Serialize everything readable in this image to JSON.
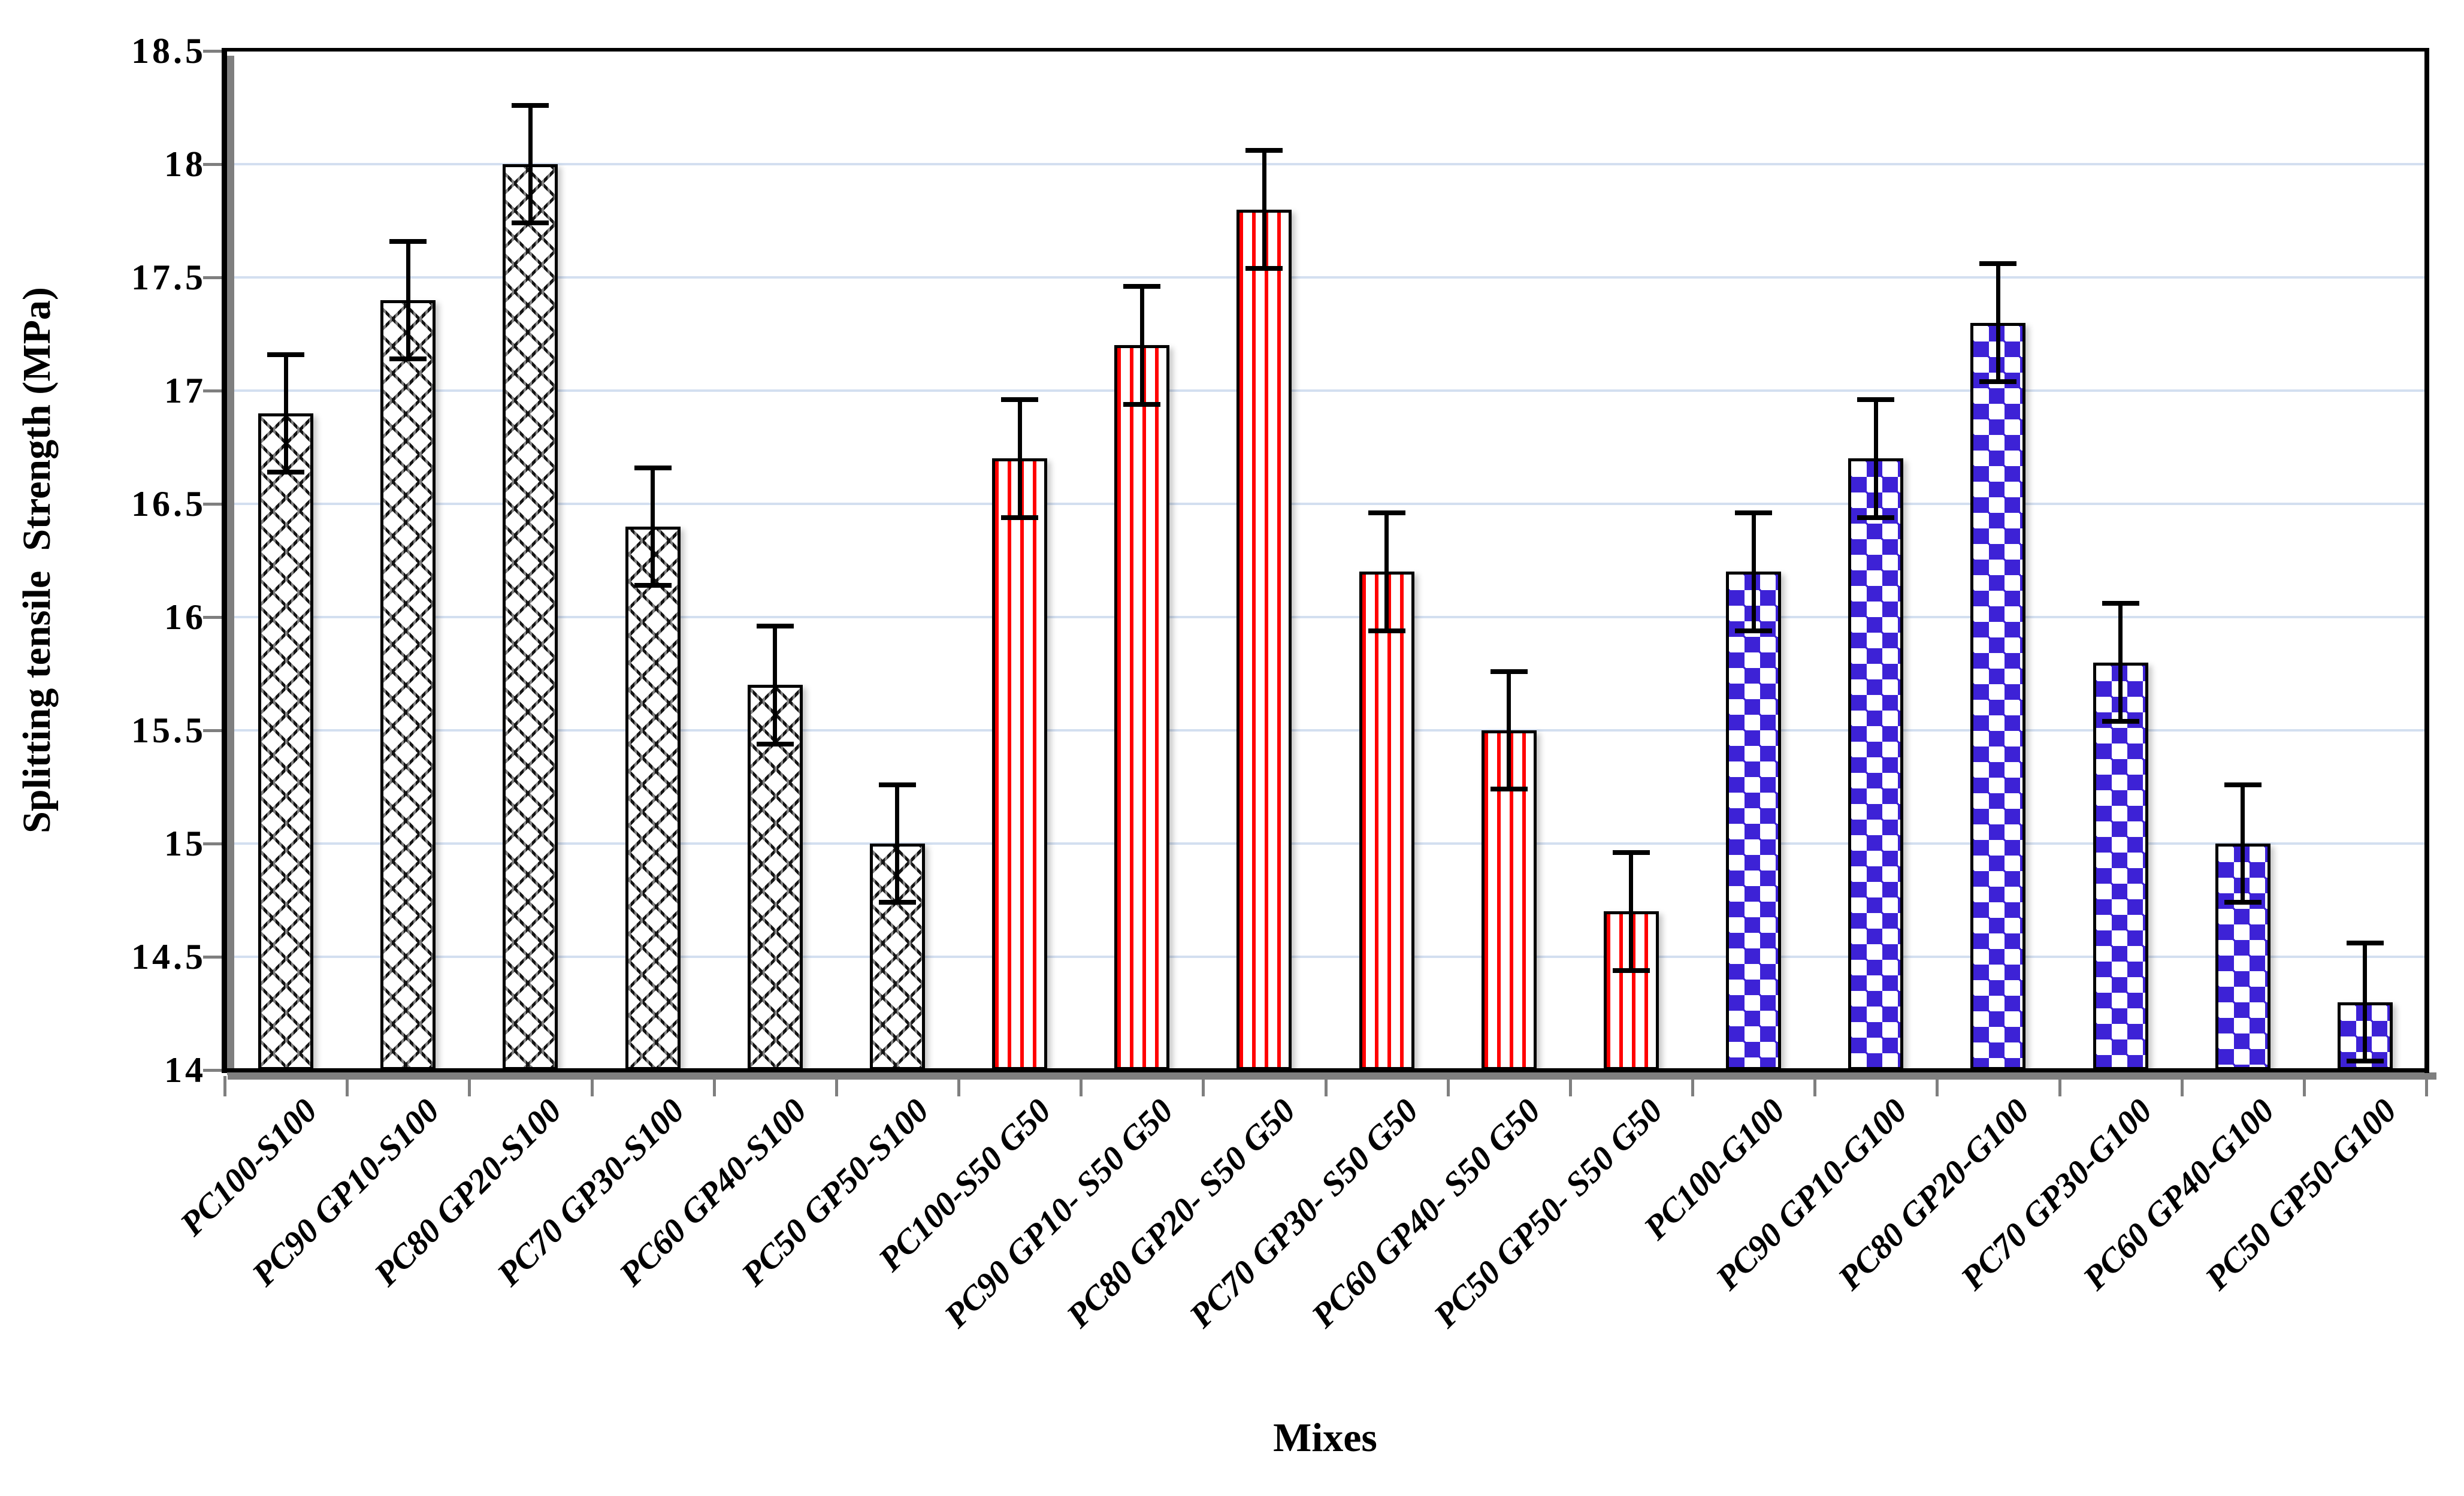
{
  "chart_data": {
    "type": "bar",
    "title": "",
    "xlabel": "Mixes",
    "ylabel": "Splitting tensile  Strength (MPa)",
    "ylim": [
      14,
      18.5
    ],
    "ytick_step": 0.5,
    "grid": true,
    "legend_position": "none",
    "ytick_labels": [
      "18.5",
      "18",
      "17.5",
      "17",
      "16.5",
      "16",
      "15.5",
      "15",
      "14.5",
      "14"
    ],
    "categories": [
      "PC100-S100",
      "PC90 GP10-S100",
      "PC80 GP20-S100",
      "PC70 GP30-S100",
      "PC60 GP40-S100",
      "PC50 GP50-S100",
      "PC100-S50 G50",
      "PC90 GP10- S50 G50",
      "PC80 GP20- S50 G50",
      "PC70 GP30- S50 G50",
      "PC60 GP40- S50 G50",
      "PC50 GP50- S50 G50",
      "PC100-G100",
      "PC90 GP10-G100",
      "PC80 GP20-G100",
      "PC70 GP30-G100",
      "PC60 GP40-G100",
      "PC50 GP50-G100"
    ],
    "bars": [
      {
        "label": "PC100-S100",
        "value": 16.9,
        "error": 0.26,
        "group": "S100"
      },
      {
        "label": "PC90 GP10-S100",
        "value": 17.4,
        "error": 0.26,
        "group": "S100"
      },
      {
        "label": "PC80 GP20-S100",
        "value": 18.0,
        "error": 0.26,
        "group": "S100"
      },
      {
        "label": "PC70 GP30-S100",
        "value": 16.4,
        "error": 0.26,
        "group": "S100"
      },
      {
        "label": "PC60 GP40-S100",
        "value": 15.7,
        "error": 0.26,
        "group": "S100"
      },
      {
        "label": "PC50 GP50-S100",
        "value": 15.0,
        "error": 0.26,
        "group": "S100"
      },
      {
        "label": "PC100-S50 G50",
        "value": 16.7,
        "error": 0.26,
        "group": "S50G50"
      },
      {
        "label": "PC90 GP10- S50 G50",
        "value": 17.2,
        "error": 0.26,
        "group": "S50G50"
      },
      {
        "label": "PC80 GP20- S50 G50",
        "value": 17.8,
        "error": 0.26,
        "group": "S50G50"
      },
      {
        "label": "PC70 GP30- S50 G50",
        "value": 16.2,
        "error": 0.26,
        "group": "S50G50"
      },
      {
        "label": "PC60 GP40- S50 G50",
        "value": 15.5,
        "error": 0.26,
        "group": "S50G50"
      },
      {
        "label": "PC50 GP50- S50 G50",
        "value": 14.7,
        "error": 0.26,
        "group": "S50G50"
      },
      {
        "label": "PC100-G100",
        "value": 16.2,
        "error": 0.26,
        "group": "G100"
      },
      {
        "label": "PC90 GP10-G100",
        "value": 16.7,
        "error": 0.26,
        "group": "G100"
      },
      {
        "label": "PC80 GP20-G100",
        "value": 17.3,
        "error": 0.26,
        "group": "G100"
      },
      {
        "label": "PC70 GP30-G100",
        "value": 15.8,
        "error": 0.26,
        "group": "G100"
      },
      {
        "label": "PC60 GP40-G100",
        "value": 15.0,
        "error": 0.26,
        "group": "G100"
      },
      {
        "label": "PC50 GP50-G100",
        "value": 14.3,
        "error": 0.26,
        "group": "G100"
      }
    ],
    "groups": {
      "S100": {
        "pattern": "crosshatch",
        "color": "#141414",
        "background": "#ffffff"
      },
      "S50G50": {
        "pattern": "vertical-stripes",
        "color": "#ff0000",
        "background": "#ffffff"
      },
      "G100": {
        "pattern": "diamonds",
        "color": "#3d22d6",
        "background": "#ffffff"
      }
    },
    "error_bar_color": "#000000",
    "gridline_color": "#d3dff0"
  }
}
